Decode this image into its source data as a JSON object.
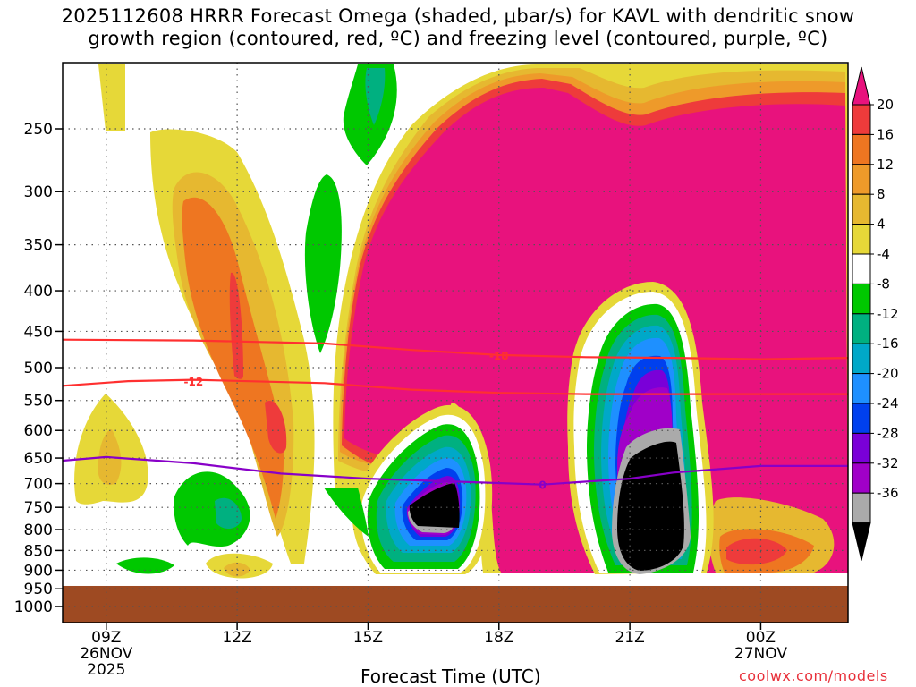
{
  "title": "2025112608 HRRR Forecast Omega (shaded, μbar/s) for KAVL with dendritic snow\ngrowth region (contoured, red, ºC) and freezing level (contoured, purple, ºC)",
  "credit": "coolwx.com/models",
  "chart_data": {
    "type": "heatmap",
    "xlabel": "Forecast Time (UTC)",
    "ylabel": "",
    "x_ticks": [
      {
        "hour": 9,
        "lines": [
          "09Z",
          "26NOV",
          "2025"
        ]
      },
      {
        "hour": 12,
        "lines": [
          "12Z"
        ]
      },
      {
        "hour": 15,
        "lines": [
          "15Z"
        ]
      },
      {
        "hour": 18,
        "lines": [
          "18Z"
        ]
      },
      {
        "hour": 21,
        "lines": [
          "21Z"
        ]
      },
      {
        "hour": 24,
        "lines": [
          "00Z",
          "27NOV"
        ]
      }
    ],
    "xlim_hours": [
      8,
      26
    ],
    "y_ticks_hpa": [
      250,
      300,
      350,
      400,
      450,
      500,
      550,
      600,
      650,
      700,
      750,
      800,
      850,
      900,
      950,
      1000
    ],
    "ground_below_hpa": 942,
    "colorbar": {
      "labels": [
        "20",
        "16",
        "12",
        "8",
        "4",
        "-4",
        "-8",
        "-12",
        "-16",
        "-20",
        "-24",
        "-28",
        "-32",
        "-36"
      ],
      "top_color": "#e8127d",
      "colors": [
        "#ee3b3b",
        "#ee7621",
        "#ee9a2a",
        "#e6b830",
        "#e6d838",
        "#ffffff",
        "#00c800",
        "#00b080",
        "#00a8c8",
        "#1e90ff",
        "#0040ee",
        "#7a00d8",
        "#a000c8",
        "#aaaaaa"
      ],
      "bottom_color": "#000000"
    },
    "dgz_contours": [
      {
        "label": "-12",
        "values": [
          [
            8,
            527
          ],
          [
            9.5,
            520
          ],
          [
            11,
            518
          ],
          [
            14,
            523
          ],
          [
            16,
            533
          ],
          [
            18,
            538
          ],
          [
            20,
            540
          ],
          [
            22,
            540
          ],
          [
            24,
            540
          ],
          [
            26,
            540
          ]
        ]
      },
      {
        "label": "-18",
        "values": [
          [
            8,
            461
          ],
          [
            11,
            462
          ],
          [
            14,
            466
          ],
          [
            16,
            475
          ],
          [
            18,
            482
          ],
          [
            20,
            485
          ],
          [
            22,
            486
          ],
          [
            24,
            488
          ],
          [
            26,
            486
          ]
        ]
      }
    ],
    "freezing_level": {
      "label": "0",
      "values": [
        [
          8,
          655
        ],
        [
          9,
          648
        ],
        [
          11,
          660
        ],
        [
          13,
          680
        ],
        [
          15,
          690
        ],
        [
          17,
          696
        ],
        [
          19,
          702
        ],
        [
          21,
          690
        ],
        [
          22,
          678
        ],
        [
          24,
          665
        ],
        [
          26,
          665
        ]
      ]
    },
    "colors": {
      "background": "#ffffff",
      "ground": "#9e4a22",
      "dgz_line": "#ff3030",
      "freezing_line": "#8800c8",
      "credit_text": "#e8303a"
    }
  }
}
